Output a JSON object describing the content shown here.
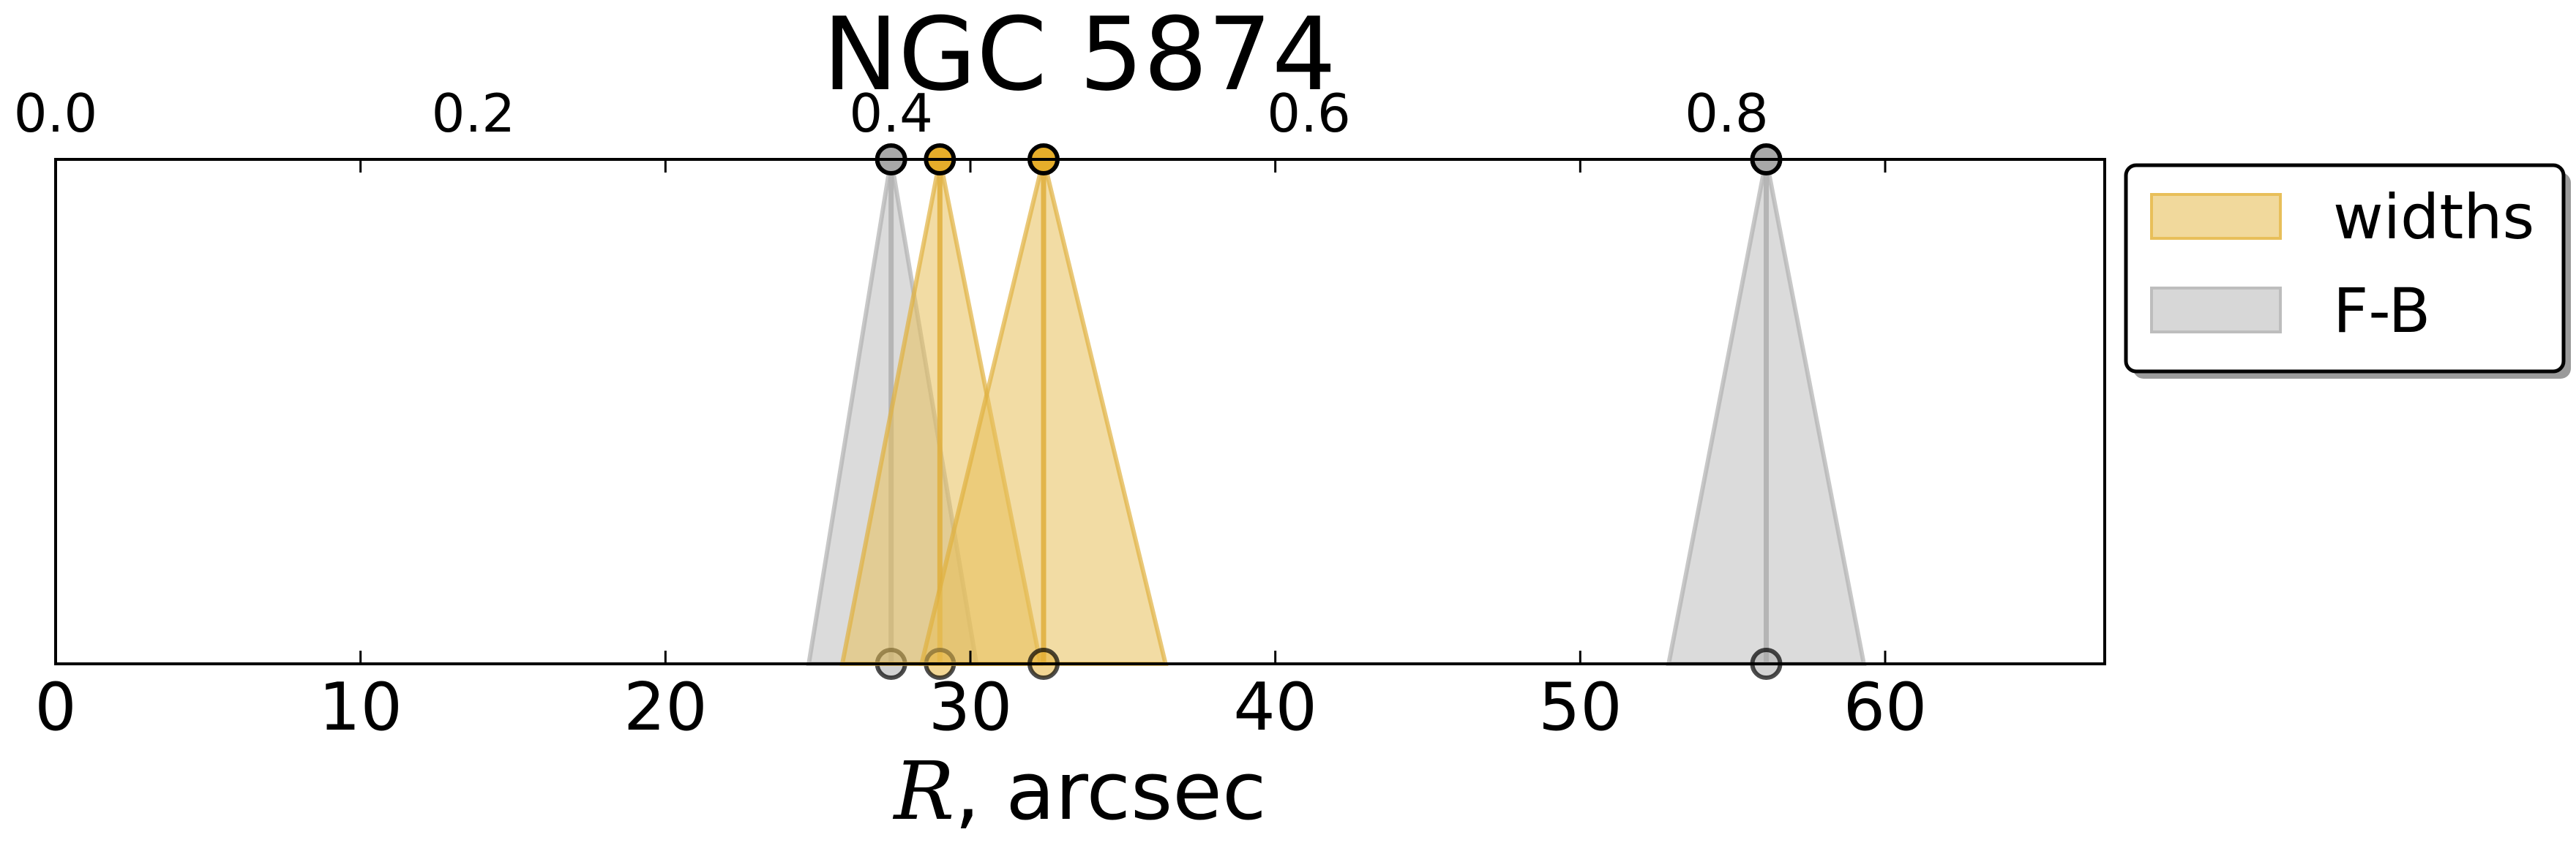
{
  "chart_data": {
    "type": "area",
    "title": "NGC 5874",
    "xlabel_var": "R",
    "xlabel_rest": ", arcsec",
    "ylabel": "",
    "xlim": [
      0,
      67.2
    ],
    "x_ticks": [
      0,
      10,
      20,
      30,
      40,
      50,
      60
    ],
    "top_xlim": [
      0,
      0.981
    ],
    "top_ticks": [
      "0.0",
      "0.2",
      "0.4",
      "0.6",
      "0.8"
    ],
    "grid": false,
    "legend_position": "right-outside",
    "series": [
      {
        "name": "F-B",
        "color": "#bdbdbd",
        "edge_color": "#b0b0b0",
        "marker_color": "#a8a8a8",
        "marks": [
          {
            "center": 27.4,
            "low": 24.7,
            "high": 30.2
          },
          {
            "center": 56.1,
            "low": 52.9,
            "high": 59.3
          }
        ]
      },
      {
        "name": "widths",
        "color": "#e8bf5a",
        "edge_color": "#e0b040",
        "marker_color": "#e5ad2a",
        "marks": [
          {
            "center": 29.0,
            "low": 25.8,
            "high": 32.3
          },
          {
            "center": 32.4,
            "low": 28.4,
            "high": 36.4
          }
        ]
      }
    ],
    "legend": [
      {
        "label": "widths",
        "color": "#e8bf5a"
      },
      {
        "label": "F-B",
        "color": "#bdbdbd"
      }
    ]
  }
}
